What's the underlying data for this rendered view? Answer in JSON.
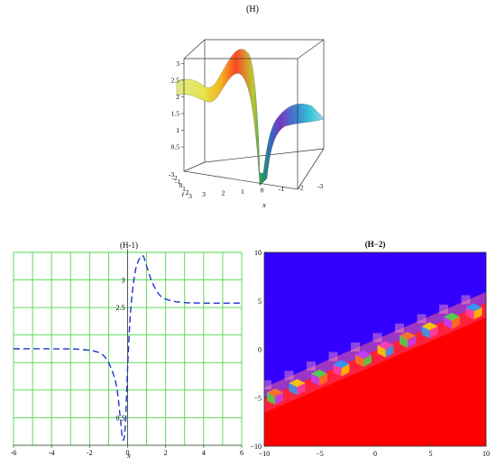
{
  "figure": {
    "top": {
      "title": "(H)",
      "z_ticks": [
        "3",
        "2.5",
        "2",
        "1.5",
        "1",
        "0.5"
      ],
      "t_ticks": [
        "-3",
        "-2",
        "-1",
        "0",
        "1",
        "2",
        "3"
      ],
      "x_ticks": [
        "3",
        "2",
        "1",
        "0",
        "-1",
        "-2",
        "-3"
      ],
      "t_label": "t",
      "x_label": "x"
    },
    "h1": {
      "title": "(H-1)",
      "xlabel": "x"
    },
    "h2": {
      "title": "(H−2)"
    }
  },
  "chart_data": [
    {
      "type": "surface3d",
      "title": "(H)",
      "xlabel": "x",
      "ylabel": "t",
      "xlim": [
        -3,
        3
      ],
      "ylim": [
        -3,
        3
      ],
      "zlim": [
        0,
        3.4
      ],
      "z_ticks": [
        0.5,
        1,
        1.5,
        2,
        2.5,
        3
      ],
      "colors": [
        "#e9f07a",
        "#ff2a00",
        "#5a36d0",
        "#27c7e8",
        "#9fe9f3"
      ]
    },
    {
      "type": "line",
      "title": "(H-1)",
      "xlabel": "x",
      "xlim": [
        -6,
        6
      ],
      "ylim": [
        0,
        3.5
      ],
      "x_ticks": [
        -6,
        -4,
        -2,
        0,
        2,
        4,
        6
      ],
      "y_ticks": [
        0.5,
        2.5,
        3
      ],
      "grid": true,
      "line_style": "dashed",
      "color": "#2233cc",
      "x": [
        -6,
        -4,
        -2.5,
        -1.5,
        -1,
        -0.6,
        -0.4,
        -0.25,
        -0.12,
        0,
        0.15,
        0.35,
        0.55,
        0.8,
        1,
        1.3,
        1.7,
        2.2,
        3,
        4,
        6
      ],
      "y": [
        1.75,
        1.75,
        1.74,
        1.68,
        1.5,
        1.1,
        0.55,
        0.1,
        0.35,
        1.4,
        2.4,
        3.05,
        3.33,
        3.44,
        3.25,
        2.95,
        2.72,
        2.63,
        2.59,
        2.58,
        2.58
      ]
    },
    {
      "type": "heatmap",
      "title": "(H−2)",
      "xlim": [
        -10,
        10
      ],
      "ylim": [
        -10,
        10
      ],
      "x_ticks": [
        -10,
        -5,
        0,
        5,
        10
      ],
      "y_ticks": [
        -10,
        -5,
        0,
        5,
        10
      ],
      "colors": {
        "upper": "#3300ff",
        "lower": "#ff0000"
      }
    }
  ]
}
